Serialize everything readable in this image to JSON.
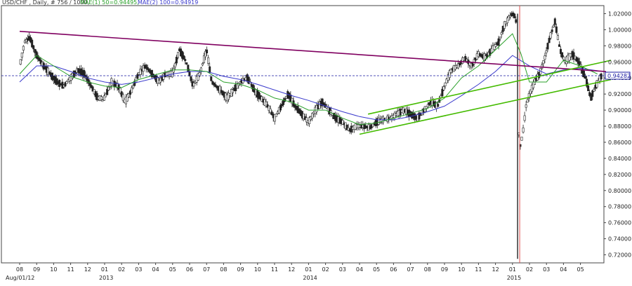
{
  "header": {
    "symbol": "USD/CHF , Daily, # 756 / 1000,",
    "mae1": "MAE(1) 50=0.94495,",
    "mae2": "MAE(2) 100=0.94919"
  },
  "colors": {
    "background": "#ffffff",
    "candle_up": "#ffffff",
    "candle_down": "#222222",
    "ma50": "#2aa02a",
    "ma100": "#3a3acc",
    "resistance_line": "#800060",
    "channel": "#44bb00",
    "price_line": "#1a1aa0",
    "jan15_marker": "#e05050"
  },
  "chart_data": {
    "type": "candlestick",
    "symbol": "USD/CHF",
    "timeframe": "Daily",
    "ylim": [
      0.71,
      1.03
    ],
    "y_ticks": [
      "1.02000",
      "1.00000",
      "0.98000",
      "0.96000",
      "0.94000",
      "0.92000",
      "0.90000",
      "0.88000",
      "0.86000",
      "0.84000",
      "0.82000",
      "0.80000",
      "0.78000",
      "0.76000",
      "0.74000",
      "0.72000"
    ],
    "current_price": "0.94282",
    "x_ticks": [
      "08",
      "09",
      "10",
      "11",
      "12",
      "01",
      "02",
      "03",
      "04",
      "05",
      "06",
      "07",
      "08",
      "09",
      "10",
      "11",
      "12",
      "01",
      "02",
      "03",
      "04",
      "05",
      "06",
      "07",
      "08",
      "09",
      "10",
      "11",
      "12",
      "01",
      "02",
      "03",
      "04",
      "05"
    ],
    "start_label": "Aug/01/12",
    "year_labels": [
      "2013",
      "2014",
      "2015"
    ],
    "month_index_start": 0,
    "price_path": [
      [
        0,
        0.955
      ],
      [
        0.3,
        0.985
      ],
      [
        0.6,
        0.99
      ],
      [
        1.0,
        0.968
      ],
      [
        1.4,
        0.955
      ],
      [
        1.8,
        0.945
      ],
      [
        2.2,
        0.935
      ],
      [
        2.6,
        0.93
      ],
      [
        3.0,
        0.94
      ],
      [
        3.4,
        0.95
      ],
      [
        3.8,
        0.945
      ],
      [
        4.2,
        0.93
      ],
      [
        4.6,
        0.915
      ],
      [
        5.0,
        0.915
      ],
      [
        5.4,
        0.935
      ],
      [
        5.8,
        0.93
      ],
      [
        6.2,
        0.91
      ],
      [
        6.6,
        0.925
      ],
      [
        7.0,
        0.945
      ],
      [
        7.4,
        0.955
      ],
      [
        7.8,
        0.945
      ],
      [
        8.2,
        0.935
      ],
      [
        8.6,
        0.945
      ],
      [
        9.0,
        0.945
      ],
      [
        9.4,
        0.975
      ],
      [
        9.8,
        0.96
      ],
      [
        10.2,
        0.93
      ],
      [
        10.6,
        0.945
      ],
      [
        11.0,
        0.975
      ],
      [
        11.3,
        0.935
      ],
      [
        11.8,
        0.925
      ],
      [
        12.2,
        0.915
      ],
      [
        12.6,
        0.925
      ],
      [
        13.0,
        0.935
      ],
      [
        13.4,
        0.94
      ],
      [
        13.8,
        0.925
      ],
      [
        14.2,
        0.915
      ],
      [
        14.6,
        0.905
      ],
      [
        15.0,
        0.89
      ],
      [
        15.4,
        0.905
      ],
      [
        15.8,
        0.92
      ],
      [
        16.2,
        0.905
      ],
      [
        16.6,
        0.895
      ],
      [
        17.0,
        0.885
      ],
      [
        17.4,
        0.9
      ],
      [
        17.8,
        0.91
      ],
      [
        18.2,
        0.9
      ],
      [
        18.6,
        0.89
      ],
      [
        19.0,
        0.885
      ],
      [
        19.4,
        0.875
      ],
      [
        19.8,
        0.88
      ],
      [
        20.2,
        0.88
      ],
      [
        20.6,
        0.878
      ],
      [
        21.0,
        0.885
      ],
      [
        21.4,
        0.888
      ],
      [
        21.8,
        0.89
      ],
      [
        22.2,
        0.895
      ],
      [
        22.6,
        0.9
      ],
      [
        23.0,
        0.895
      ],
      [
        23.4,
        0.89
      ],
      [
        23.8,
        0.9
      ],
      [
        24.2,
        0.91
      ],
      [
        24.6,
        0.905
      ],
      [
        25.0,
        0.93
      ],
      [
        25.4,
        0.95
      ],
      [
        25.8,
        0.955
      ],
      [
        26.2,
        0.965
      ],
      [
        26.6,
        0.955
      ],
      [
        27.0,
        0.97
      ],
      [
        27.4,
        0.965
      ],
      [
        27.8,
        0.975
      ],
      [
        28.2,
        0.985
      ],
      [
        28.5,
        1.005
      ],
      [
        28.8,
        1.015
      ],
      [
        29.0,
        1.02
      ],
      [
        29.2,
        1.015
      ],
      [
        29.4,
        0.85
      ],
      [
        29.6,
        0.87
      ],
      [
        29.8,
        0.905
      ],
      [
        30.0,
        0.92
      ],
      [
        30.3,
        0.935
      ],
      [
        30.6,
        0.945
      ],
      [
        30.9,
        0.965
      ],
      [
        31.2,
        0.99
      ],
      [
        31.5,
        1.01
      ],
      [
        31.8,
        0.975
      ],
      [
        32.1,
        0.96
      ],
      [
        32.5,
        0.97
      ],
      [
        32.9,
        0.96
      ],
      [
        33.3,
        0.94
      ],
      [
        33.6,
        0.915
      ],
      [
        33.9,
        0.93
      ],
      [
        34.2,
        0.942
      ]
    ],
    "ma50_path": [
      [
        0,
        0.945
      ],
      [
        1,
        0.968
      ],
      [
        2,
        0.955
      ],
      [
        3,
        0.942
      ],
      [
        4,
        0.935
      ],
      [
        5,
        0.93
      ],
      [
        6,
        0.928
      ],
      [
        7,
        0.938
      ],
      [
        8,
        0.944
      ],
      [
        9,
        0.95
      ],
      [
        10,
        0.95
      ],
      [
        11,
        0.948
      ],
      [
        12,
        0.935
      ],
      [
        13,
        0.932
      ],
      [
        14,
        0.925
      ],
      [
        15,
        0.915
      ],
      [
        16,
        0.91
      ],
      [
        17,
        0.9
      ],
      [
        18,
        0.9
      ],
      [
        19,
        0.89
      ],
      [
        20,
        0.882
      ],
      [
        21,
        0.884
      ],
      [
        22,
        0.89
      ],
      [
        23,
        0.896
      ],
      [
        24,
        0.902
      ],
      [
        25,
        0.915
      ],
      [
        26,
        0.94
      ],
      [
        27,
        0.955
      ],
      [
        28,
        0.975
      ],
      [
        29,
        0.995
      ],
      [
        29.5,
        0.97
      ],
      [
        30,
        0.935
      ],
      [
        31,
        0.935
      ],
      [
        32,
        0.962
      ],
      [
        33,
        0.955
      ],
      [
        34,
        0.945
      ]
    ],
    "ma100_path": [
      [
        0,
        0.935
      ],
      [
        1,
        0.955
      ],
      [
        2,
        0.955
      ],
      [
        3,
        0.948
      ],
      [
        4,
        0.94
      ],
      [
        5,
        0.935
      ],
      [
        6,
        0.932
      ],
      [
        7,
        0.935
      ],
      [
        8,
        0.94
      ],
      [
        9,
        0.945
      ],
      [
        10,
        0.948
      ],
      [
        11,
        0.948
      ],
      [
        12,
        0.942
      ],
      [
        13,
        0.938
      ],
      [
        14,
        0.932
      ],
      [
        15,
        0.925
      ],
      [
        16,
        0.918
      ],
      [
        17,
        0.912
      ],
      [
        18,
        0.905
      ],
      [
        19,
        0.898
      ],
      [
        20,
        0.892
      ],
      [
        21,
        0.888
      ],
      [
        22,
        0.888
      ],
      [
        23,
        0.892
      ],
      [
        24,
        0.898
      ],
      [
        25,
        0.905
      ],
      [
        26,
        0.918
      ],
      [
        27,
        0.932
      ],
      [
        28,
        0.948
      ],
      [
        29,
        0.968
      ],
      [
        30,
        0.955
      ],
      [
        31,
        0.945
      ],
      [
        32,
        0.95
      ],
      [
        33,
        0.952
      ],
      [
        34,
        0.949
      ]
    ],
    "trendlines": [
      {
        "name": "resistance",
        "x1": 0,
        "y1": 0.998,
        "x2": 34.5,
        "y2": 0.948
      },
      {
        "name": "channel-upper",
        "x1": 20.5,
        "y1": 0.895,
        "x2": 34.8,
        "y2": 0.962
      },
      {
        "name": "channel-lower",
        "x1": 20.0,
        "y1": 0.87,
        "x2": 34.8,
        "y2": 0.938
      }
    ],
    "spike": {
      "x": 29.3,
      "low": 0.715,
      "high": 1.02
    },
    "grid": false
  }
}
